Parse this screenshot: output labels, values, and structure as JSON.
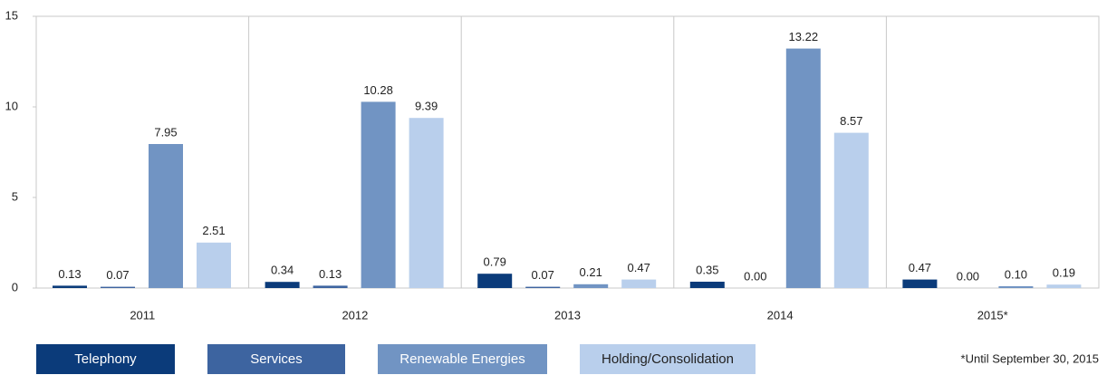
{
  "chart_data": {
    "type": "bar",
    "categories": [
      "2011",
      "2012",
      "2013",
      "2014",
      "2015*"
    ],
    "series": [
      {
        "name": "Telephony",
        "color": "#0b3b7a",
        "values": [
          0.13,
          0.34,
          0.79,
          0.35,
          0.47
        ],
        "value_labels": [
          "0.13",
          "0.34",
          "0.79",
          "0.35",
          "0.47"
        ]
      },
      {
        "name": "Services",
        "color": "#3d64a0",
        "values": [
          0.07,
          0.13,
          0.07,
          0.0,
          0.0
        ],
        "value_labels": [
          "0.07",
          "0.13",
          "0.07",
          "0.00",
          "0.00"
        ]
      },
      {
        "name": "Renewable Energies",
        "color": "#7194c3",
        "values": [
          7.95,
          10.28,
          0.21,
          13.22,
          0.1
        ],
        "value_labels": [
          "7.95",
          "10.28",
          "0.21",
          "13.22",
          "0.10"
        ]
      },
      {
        "name": "Holding/Consolidation",
        "color": "#b9cfec",
        "values": [
          2.51,
          9.39,
          0.47,
          8.57,
          0.19
        ],
        "value_labels": [
          "2.51",
          "9.39",
          "0.47",
          "8.57",
          "0.19"
        ]
      }
    ],
    "ylim": [
      0,
      15
    ],
    "yticks": [
      0,
      5,
      10,
      15
    ],
    "annotation": "*Until September 30, 2015"
  }
}
